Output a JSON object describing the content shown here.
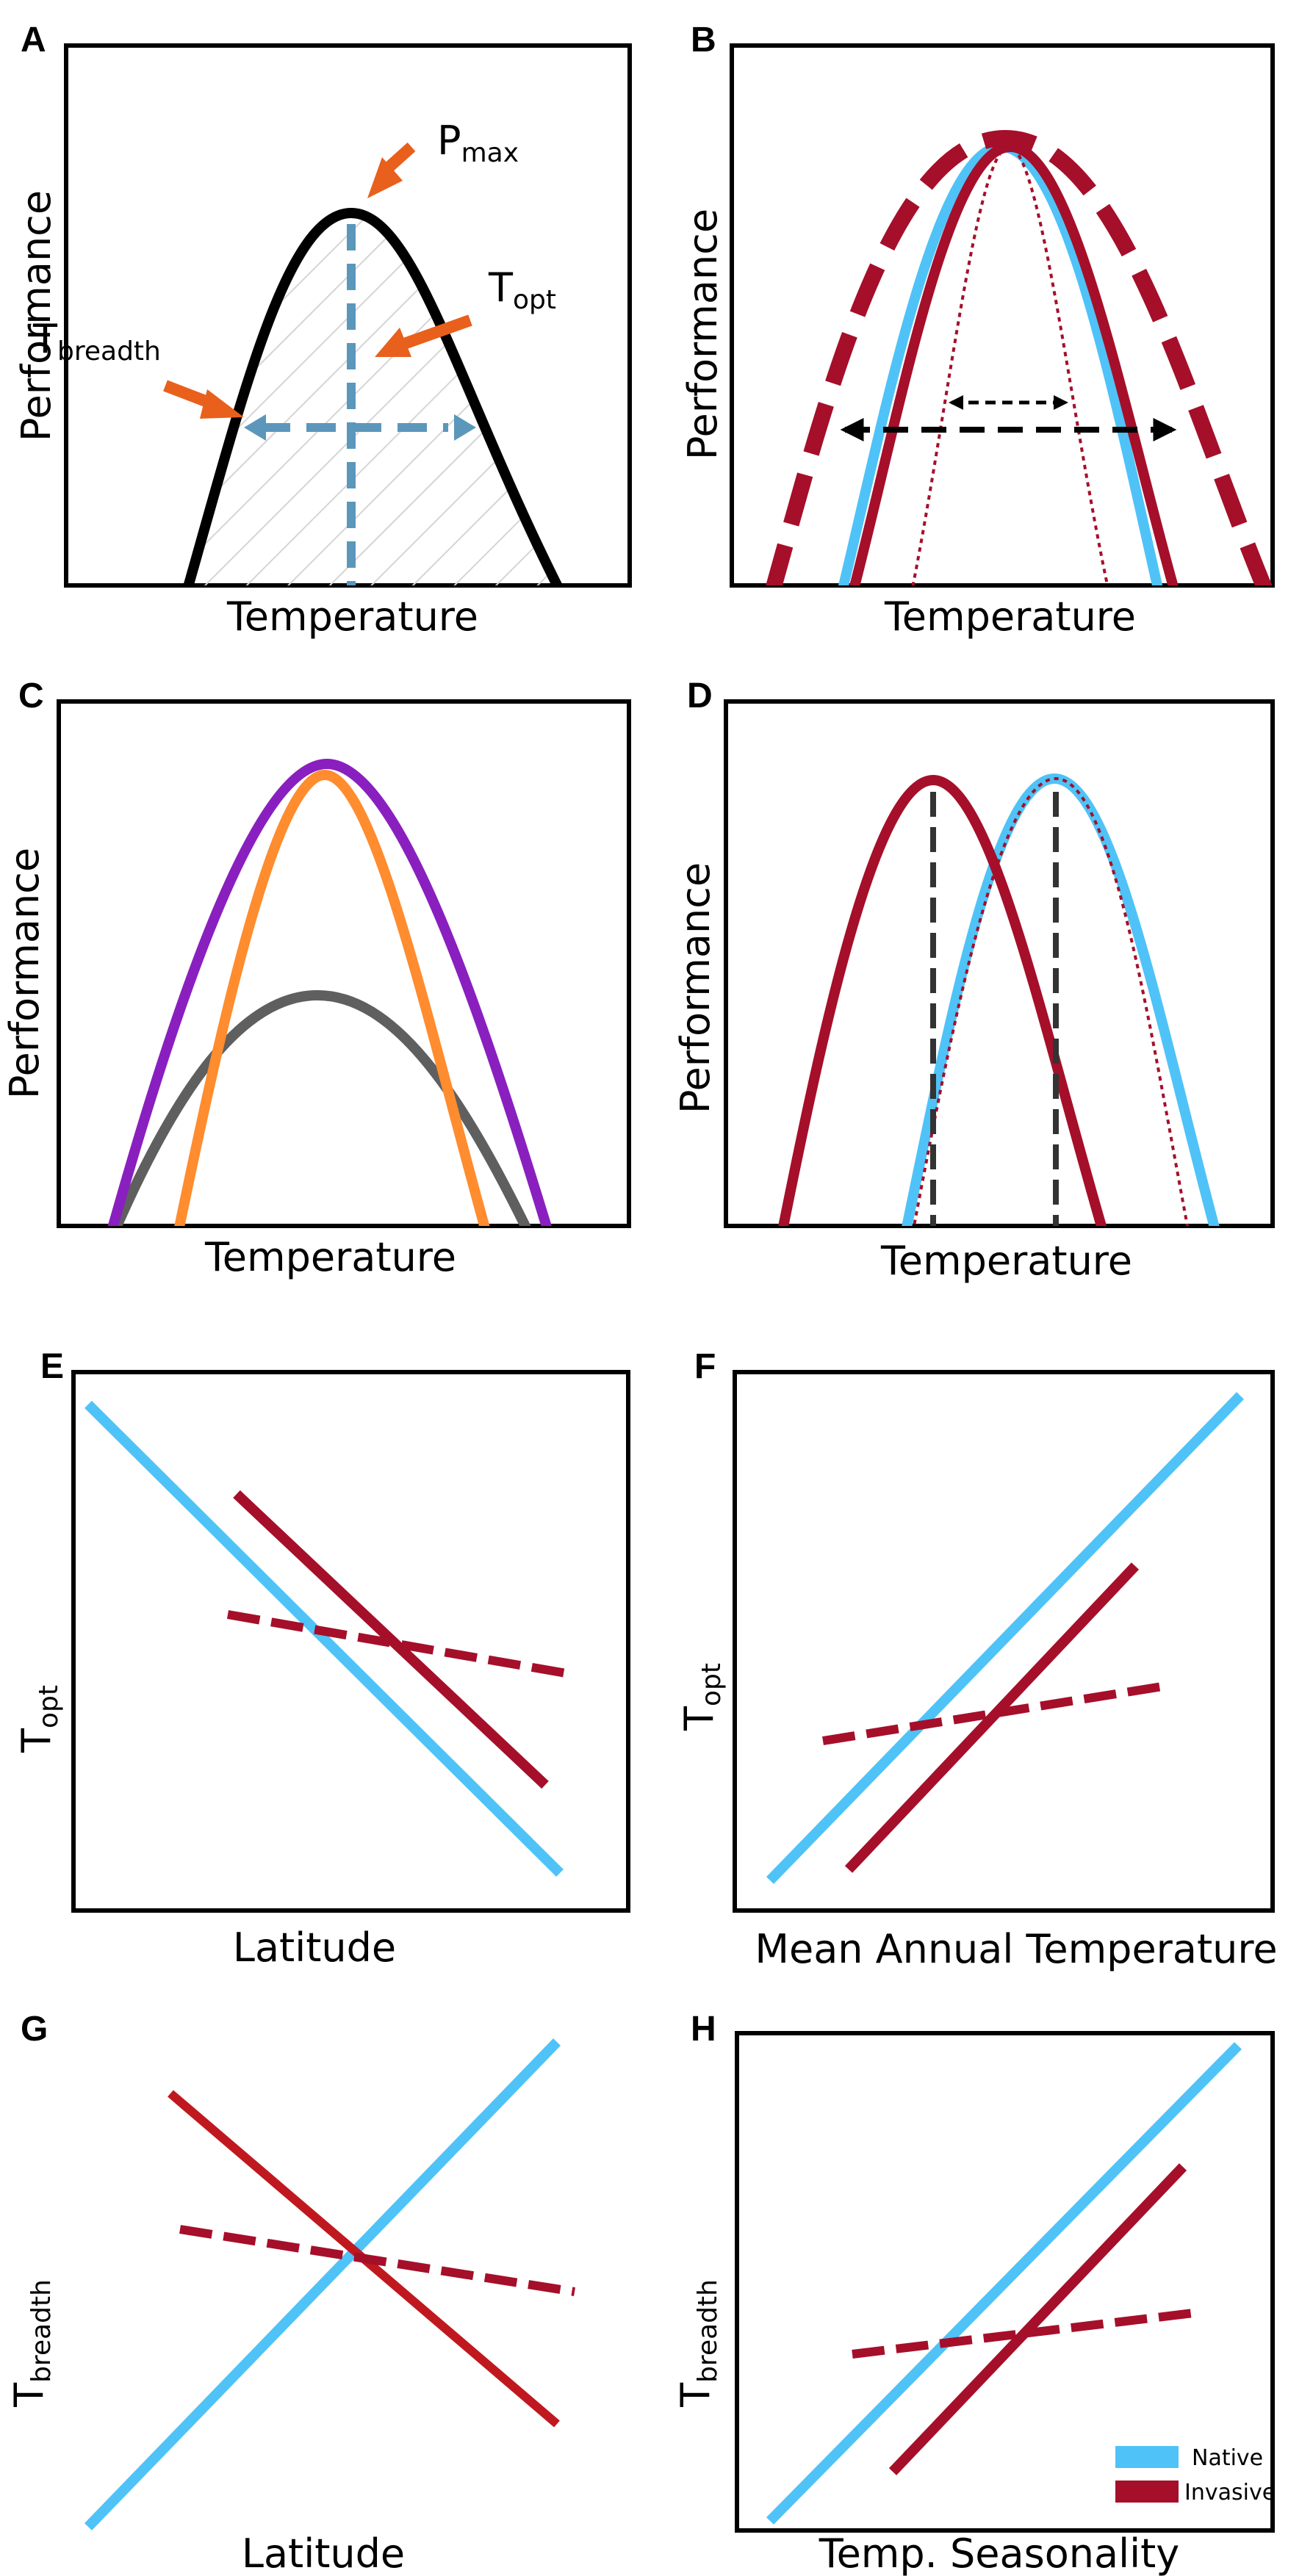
{
  "colors": {
    "native": "#4fc3f7",
    "invasive": "#a50f2a",
    "orange": "#ff8c2e",
    "purple": "#8a1fbf",
    "gray": "#5f5f5f",
    "arrow_orange": "#e8601c",
    "guide_blue": "#5b97bb",
    "hatch": "#d5d5d5"
  },
  "panels": {
    "A": {
      "letter": "A",
      "xlabel": "Temperature",
      "ylabel": "Performance",
      "pmax": {
        "main": "P",
        "sub": "max"
      },
      "topt": {
        "main": "T",
        "sub": "opt"
      },
      "tbreadth": {
        "main": "T",
        "sub": "breadth"
      }
    },
    "B": {
      "letter": "B",
      "xlabel": "Temperature",
      "ylabel": "Performance"
    },
    "C": {
      "letter": "C",
      "xlabel": "Temperature",
      "ylabel": "Performance"
    },
    "D": {
      "letter": "D",
      "xlabel": "Temperature",
      "ylabel": "Performance"
    },
    "E": {
      "letter": "E",
      "xlabel": "Latitude",
      "ylabel": {
        "main": "T",
        "sub": "opt"
      }
    },
    "F": {
      "letter": "F",
      "xlabel": "Mean Annual Temperature",
      "ylabel": {
        "main": "T",
        "sub": "opt"
      }
    },
    "G": {
      "letter": "G",
      "xlabel": "Latitude",
      "ylabel": {
        "main": "T",
        "sub": "breadth"
      }
    },
    "H": {
      "letter": "H",
      "xlabel": "Temp. Seasonality",
      "ylabel": {
        "main": "T",
        "sub": "breadth"
      }
    }
  },
  "legend": {
    "native": "Native",
    "invasive": "Invasive"
  }
}
